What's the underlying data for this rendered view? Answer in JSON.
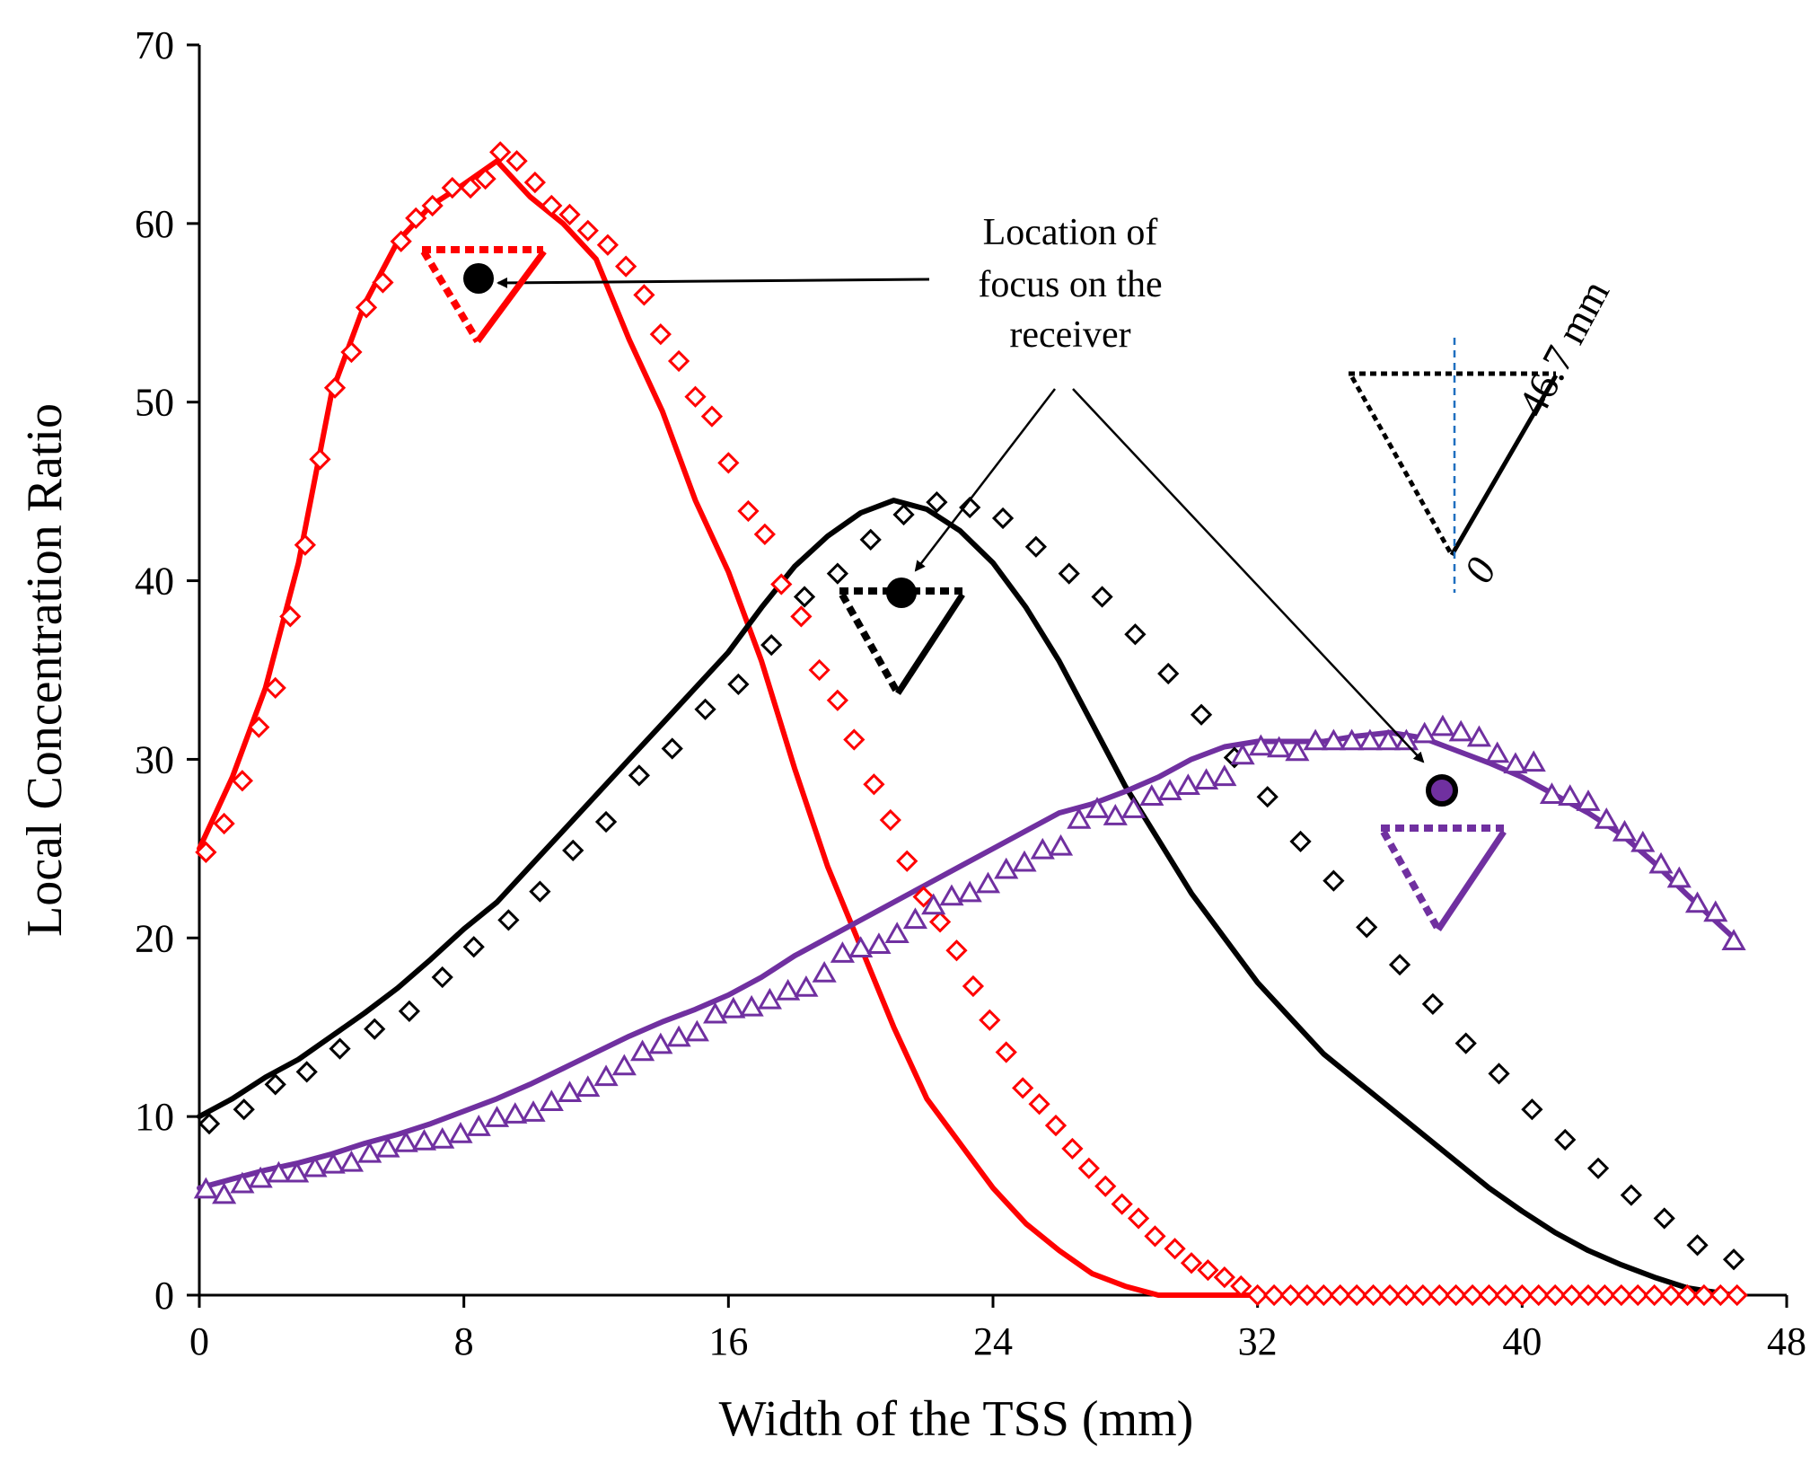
{
  "chart_data": {
    "type": "line",
    "title": "",
    "xlabel": "Width of the TSS (mm)",
    "ylabel": "Local Concentration Ratio",
    "xlim": [
      0,
      48
    ],
    "ylim": [
      0,
      70
    ],
    "xticks": [
      0,
      8,
      16,
      24,
      32,
      40,
      48
    ],
    "yticks": [
      0,
      10,
      20,
      30,
      40,
      50,
      60,
      70
    ],
    "grid": false,
    "legend": "none",
    "colors": {
      "red": "#ff0000",
      "black": "#000000",
      "purple": "#7030a0",
      "guide": "#1f6fbf"
    },
    "series": [
      {
        "name": "red-simulated",
        "color": "#ff0000",
        "style": "solid-line",
        "x": [
          0,
          1,
          2,
          3,
          4,
          5,
          6,
          7,
          8,
          9,
          10,
          11,
          12,
          13,
          14,
          15,
          16,
          17,
          18,
          19,
          20,
          21,
          22,
          23,
          24,
          25,
          26,
          27,
          28,
          29,
          30,
          31,
          32,
          33,
          34,
          35,
          36,
          37,
          38,
          39,
          40,
          41,
          42,
          43,
          44,
          45,
          46.4
        ],
        "values": [
          25,
          29,
          34,
          41,
          50.5,
          55.5,
          59,
          61,
          62.2,
          63.5,
          61.5,
          60,
          58,
          53.5,
          49.5,
          44.5,
          40.5,
          35.5,
          29.5,
          24,
          19.5,
          15,
          11,
          8.5,
          6,
          4,
          2.5,
          1.2,
          0.5,
          0,
          0,
          0,
          0,
          0,
          0,
          0,
          0,
          0,
          0,
          0,
          0,
          0,
          0,
          0,
          0,
          0,
          0
        ]
      },
      {
        "name": "red-measured",
        "color": "#ff0000",
        "style": "diamond-markers",
        "x": [
          0.2,
          0.75,
          1.3,
          1.8,
          2.3,
          2.75,
          3.2,
          3.65,
          4.1,
          4.6,
          5.05,
          5.55,
          6.1,
          6.55,
          7.05,
          7.65,
          8.2,
          8.65,
          9.1,
          9.6,
          10.15,
          10.65,
          11.2,
          11.75,
          12.35,
          12.9,
          13.45,
          13.95,
          14.5,
          15.0,
          15.5,
          16.0,
          16.6,
          17.1,
          17.6,
          18.2,
          18.75,
          19.3,
          19.8,
          20.4,
          20.9,
          21.4,
          21.9,
          22.4,
          22.9,
          23.4,
          23.9,
          24.4,
          24.9,
          25.4,
          25.9,
          26.4,
          26.9,
          27.4,
          27.9,
          28.4,
          28.9,
          29.5,
          30.0,
          30.5,
          31.0,
          31.5,
          32.0,
          32.5,
          33.0,
          33.5,
          34.0,
          34.5,
          35.0,
          35.5,
          36.0,
          36.5,
          37.0,
          37.5,
          38.0,
          38.5,
          39.0,
          39.5,
          40.0,
          40.5,
          41.0,
          41.5,
          42.0,
          42.5,
          43.0,
          43.5,
          44.0,
          44.5,
          45.0,
          45.5,
          46.0,
          46.5
        ],
        "values": [
          24.8,
          26.4,
          28.8,
          31.8,
          34.0,
          38.0,
          42.0,
          46.8,
          50.8,
          52.8,
          55.3,
          56.7,
          59.0,
          60.3,
          61.0,
          62.0,
          62.0,
          62.5,
          64.0,
          63.5,
          62.3,
          61.0,
          60.5,
          59.6,
          58.8,
          57.6,
          56.0,
          53.8,
          52.3,
          50.3,
          49.2,
          46.6,
          43.9,
          42.6,
          39.8,
          38.0,
          35.0,
          33.3,
          31.1,
          28.6,
          26.6,
          24.3,
          22.3,
          20.9,
          19.3,
          17.3,
          15.4,
          13.6,
          11.6,
          10.7,
          9.5,
          8.2,
          7.1,
          6.1,
          5.1,
          4.3,
          3.3,
          2.6,
          1.8,
          1.4,
          1.0,
          0.5,
          0,
          0,
          0,
          0,
          0,
          0,
          0,
          0,
          0,
          0,
          0,
          0,
          0,
          0,
          0,
          0,
          0,
          0,
          0,
          0,
          0,
          0,
          0,
          0,
          0,
          0,
          0,
          0,
          0,
          0
        ]
      },
      {
        "name": "black-simulated",
        "color": "#000000",
        "style": "solid-line",
        "x": [
          0,
          1,
          2,
          3,
          4,
          5,
          6,
          7,
          8,
          9,
          10,
          11,
          12,
          13,
          14,
          15,
          16,
          17,
          18,
          19,
          20,
          21,
          22,
          23,
          24,
          25,
          26,
          27,
          28,
          29,
          30,
          31,
          32,
          33,
          34,
          35,
          36,
          37,
          38,
          39,
          40,
          41,
          42,
          43,
          44,
          45,
          46.4
        ],
        "values": [
          10,
          11,
          12.2,
          13.2,
          14.5,
          15.8,
          17.2,
          18.8,
          20.5,
          22,
          24,
          26,
          28,
          30,
          32,
          34,
          36,
          38.5,
          40.8,
          42.5,
          43.8,
          44.5,
          44,
          42.8,
          41,
          38.5,
          35.5,
          32,
          28.5,
          25.5,
          22.5,
          20,
          17.5,
          15.5,
          13.5,
          12,
          10.5,
          9,
          7.5,
          6,
          4.7,
          3.5,
          2.5,
          1.7,
          1.0,
          0.4,
          0
        ]
      },
      {
        "name": "black-measured",
        "color": "#000000",
        "style": "diamond-markers",
        "x": [
          0.3,
          1.35,
          2.3,
          3.25,
          4.25,
          5.3,
          6.35,
          7.35,
          8.3,
          9.35,
          10.3,
          11.3,
          12.3,
          13.3,
          14.3,
          15.3,
          16.3,
          17.3,
          18.3,
          19.3,
          20.3,
          21.3,
          22.3,
          23.3,
          24.3,
          25.3,
          26.3,
          27.3,
          28.3,
          29.3,
          30.3,
          31.3,
          32.3,
          33.3,
          34.3,
          35.3,
          36.3,
          37.3,
          38.3,
          39.3,
          40.3,
          41.3,
          42.3,
          43.3,
          44.3,
          45.3,
          46.4
        ],
        "values": [
          9.6,
          10.4,
          11.8,
          12.5,
          13.8,
          14.9,
          15.9,
          17.8,
          19.5,
          21.0,
          22.6,
          24.9,
          26.5,
          29.1,
          30.6,
          32.8,
          34.2,
          36.4,
          39.1,
          40.4,
          42.3,
          43.7,
          44.4,
          44.1,
          43.5,
          41.9,
          40.4,
          39.1,
          37.0,
          34.8,
          32.5,
          30.1,
          27.9,
          25.4,
          23.2,
          20.6,
          18.5,
          16.3,
          14.1,
          12.4,
          10.4,
          8.7,
          7.1,
          5.6,
          4.3,
          2.8,
          2.0
        ]
      },
      {
        "name": "purple-simulated",
        "color": "#7030a0",
        "style": "solid-line",
        "x": [
          0,
          1,
          2,
          3,
          4,
          5,
          6,
          7,
          8,
          9,
          10,
          11,
          12,
          13,
          14,
          15,
          16,
          17,
          18,
          19,
          20,
          21,
          22,
          23,
          24,
          25,
          26,
          27,
          28,
          29,
          30,
          31,
          32,
          33,
          34,
          35,
          36,
          37,
          38,
          39,
          40,
          41,
          42,
          43,
          44,
          45,
          46.4
        ],
        "values": [
          6,
          6.5,
          7,
          7.4,
          7.9,
          8.5,
          9,
          9.6,
          10.3,
          11,
          11.8,
          12.7,
          13.6,
          14.5,
          15.3,
          16,
          16.8,
          17.8,
          19,
          20,
          21,
          22,
          23,
          24,
          25,
          26,
          27,
          27.5,
          28.2,
          29,
          30,
          30.7,
          31,
          31,
          31,
          31.3,
          31.5,
          31.2,
          30.5,
          29.8,
          29,
          28,
          27,
          25.8,
          24.2,
          22.4,
          20
        ]
      },
      {
        "name": "purple-measured",
        "color": "#7030a0",
        "style": "triangle-markers",
        "x": [
          0.2,
          0.75,
          1.3,
          1.85,
          2.4,
          2.95,
          3.5,
          4.05,
          4.6,
          5.15,
          5.7,
          6.25,
          6.8,
          7.35,
          7.9,
          8.45,
          9.0,
          9.55,
          10.1,
          10.65,
          11.2,
          11.75,
          12.3,
          12.85,
          13.4,
          13.95,
          14.5,
          15.05,
          15.6,
          16.15,
          16.7,
          17.25,
          17.8,
          18.35,
          18.9,
          19.45,
          20.0,
          20.55,
          21.1,
          21.65,
          22.2,
          22.75,
          23.3,
          23.85,
          24.4,
          24.95,
          25.5,
          26.05,
          26.6,
          27.15,
          27.7,
          28.25,
          28.8,
          29.35,
          29.9,
          30.45,
          31.0,
          31.55,
          32.1,
          32.65,
          33.2,
          33.75,
          34.3,
          34.85,
          35.4,
          35.95,
          36.5,
          37.05,
          37.6,
          38.15,
          38.7,
          39.25,
          39.8,
          40.35,
          40.9,
          41.45,
          42.0,
          42.55,
          43.1,
          43.65,
          44.2,
          44.75,
          45.3,
          45.85,
          46.4
        ],
        "values": [
          5.9,
          5.6,
          6.2,
          6.5,
          6.8,
          6.8,
          7.1,
          7.3,
          7.4,
          7.9,
          8.2,
          8.5,
          8.6,
          8.7,
          9.0,
          9.4,
          9.9,
          10.1,
          10.2,
          10.8,
          11.3,
          11.6,
          12.2,
          12.8,
          13.6,
          14.0,
          14.4,
          14.7,
          15.7,
          16.0,
          16.1,
          16.5,
          17.0,
          17.2,
          18.0,
          19.1,
          19.4,
          19.6,
          20.2,
          21.0,
          21.8,
          22.3,
          22.5,
          23.0,
          23.8,
          24.2,
          24.9,
          25.1,
          26.6,
          27.2,
          26.8,
          27.2,
          27.9,
          28.2,
          28.5,
          28.8,
          29.0,
          30.2,
          30.7,
          30.6,
          30.4,
          31.0,
          31.0,
          31.0,
          31.0,
          31.0,
          31.0,
          31.4,
          31.8,
          31.5,
          31.2,
          30.3,
          29.7,
          29.8,
          28.0,
          27.9,
          27.6,
          26.6,
          25.9,
          25.3,
          24.1,
          23.3,
          21.9,
          21.4,
          19.8
        ]
      }
    ],
    "annotations": {
      "focus_label_lines": [
        "Location of",
        "focus on the",
        "receiver"
      ],
      "dimension_label": "46.7 mm",
      "zero_label": "0"
    }
  }
}
